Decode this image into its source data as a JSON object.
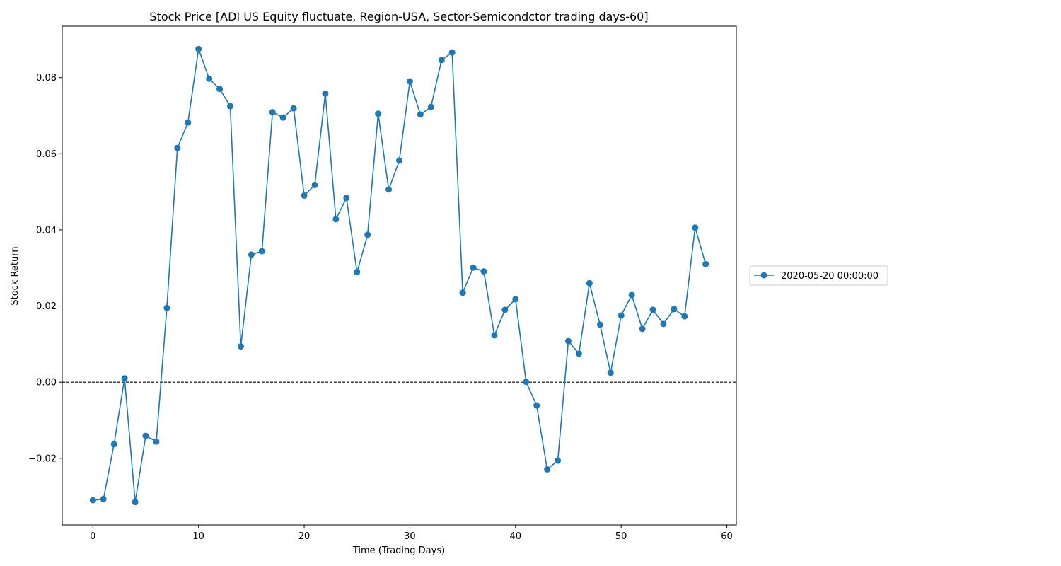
{
  "chart_data": {
    "type": "line",
    "title": "Stock Price [ADI US Equity fluctuate, Region-USA, Sector-Semicondctor trading days-60]",
    "xlabel": "Time (Trading Days)",
    "ylabel": "Stock Return",
    "xlim": [
      -2.9,
      60.9
    ],
    "ylim": [
      -0.0375,
      0.0935
    ],
    "x_ticks": [
      0,
      10,
      20,
      30,
      40,
      50,
      60
    ],
    "x_tick_labels": [
      "0",
      "10",
      "20",
      "30",
      "40",
      "50",
      "60"
    ],
    "y_ticks": [
      -0.02,
      0.0,
      0.02,
      0.04,
      0.06,
      0.08
    ],
    "y_tick_labels": [
      "−0.02",
      "0.00",
      "0.02",
      "0.04",
      "0.06",
      "0.08"
    ],
    "reference_line": {
      "y": 0.0,
      "style": "dashed",
      "color": "#000000"
    },
    "legend_placement": "center-right outside",
    "grid": false,
    "series": [
      {
        "name": "2020-05-20 00:00:00",
        "color": "#1f77b4",
        "marker": "circle",
        "x": [
          0,
          1,
          2,
          3,
          4,
          5,
          6,
          7,
          8,
          9,
          10,
          11,
          12,
          13,
          14,
          15,
          16,
          17,
          18,
          19,
          20,
          21,
          22,
          23,
          24,
          25,
          26,
          27,
          28,
          29,
          30,
          31,
          32,
          33,
          34,
          35,
          36,
          37,
          38,
          39,
          40,
          41,
          42,
          43,
          44,
          45,
          46,
          47,
          48,
          49,
          50,
          51,
          52,
          53,
          54,
          55,
          56,
          57,
          58
        ],
        "values": [
          -0.031,
          -0.0307,
          -0.0163,
          0.001,
          -0.0315,
          -0.0141,
          -0.0156,
          0.0195,
          0.0615,
          0.0682,
          0.0875,
          0.0797,
          0.077,
          0.0725,
          0.0094,
          0.0335,
          0.0344,
          0.0709,
          0.0695,
          0.0719,
          0.049,
          0.0518,
          0.0758,
          0.0428,
          0.0484,
          0.0289,
          0.0387,
          0.0705,
          0.0506,
          0.0582,
          0.079,
          0.0703,
          0.0723,
          0.0846,
          0.0866,
          0.0235,
          0.0301,
          0.0291,
          0.0123,
          0.019,
          0.0218,
          0.0001,
          -0.0061,
          -0.0229,
          -0.0206,
          0.0108,
          0.0075,
          0.026,
          0.0151,
          0.0025,
          0.0175,
          0.0229,
          0.014,
          0.019,
          0.0153,
          0.0192,
          0.0173,
          0.0406,
          0.031
        ]
      }
    ]
  }
}
